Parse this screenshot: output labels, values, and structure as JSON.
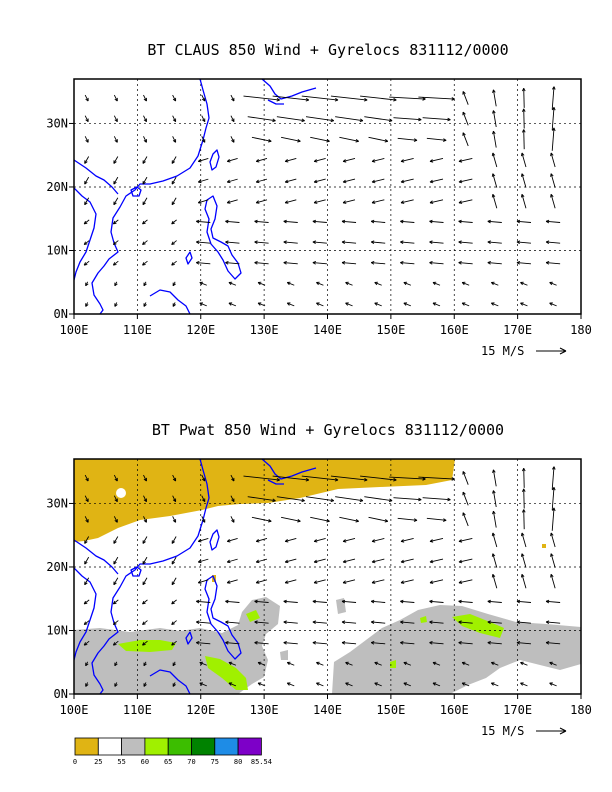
{
  "chart_data": [
    {
      "type": "vector-field",
      "title": "BT CLAUS 850 Wind + Gyrelocs 831112/0000",
      "x_tick_labels": [
        "100E",
        "110E",
        "120E",
        "130E",
        "140E",
        "150E",
        "160E",
        "170E",
        "180"
      ],
      "y_tick_labels": [
        "0N",
        "10N",
        "20N",
        "30N"
      ],
      "xlim": [
        100,
        180
      ],
      "ylim": [
        0,
        37
      ],
      "grid": true,
      "reference_vector": {
        "speed": 15,
        "label": "15 M/S"
      },
      "coastline_color": "#0000ff"
    },
    {
      "type": "vector-field",
      "title": "BT Pwat 850 Wind + Gyrelocs 831112/0000",
      "x_tick_labels": [
        "100E",
        "110E",
        "120E",
        "130E",
        "140E",
        "150E",
        "160E",
        "170E",
        "180"
      ],
      "y_tick_labels": [
        "0N",
        "10N",
        "20N",
        "30N"
      ],
      "xlim": [
        100,
        180
      ],
      "ylim": [
        0,
        37
      ],
      "grid": true,
      "reference_vector": {
        "speed": 15,
        "label": "15 M/S"
      },
      "coastline_color": "#0000ff",
      "fill_field": {
        "levels": [
          0,
          25,
          55,
          60,
          65,
          70,
          75,
          80,
          85.54
        ],
        "level_labels": [
          "0",
          "25",
          "55",
          "60",
          "65",
          "70",
          "75",
          "80",
          "85.54"
        ],
        "colors": [
          "#e0b414",
          "#ffffff",
          "#bebebe",
          "#a0f000",
          "#3cbe00",
          "#008200",
          "#1e8ce6",
          "#7d00c8"
        ]
      }
    }
  ]
}
